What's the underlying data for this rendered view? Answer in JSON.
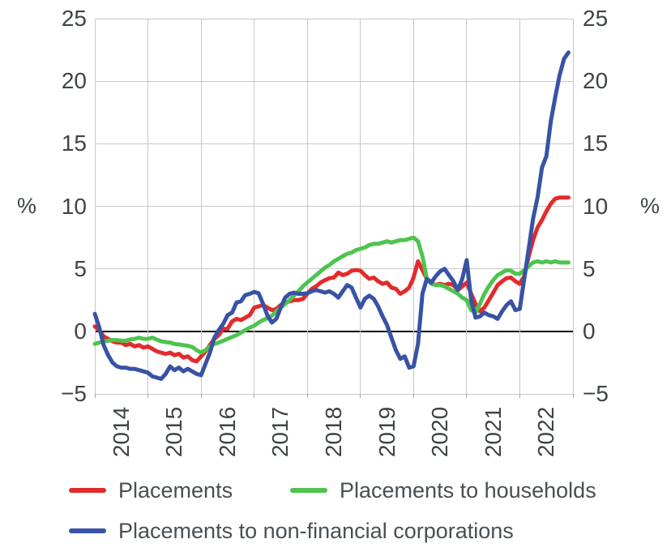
{
  "chart": {
    "title": "",
    "left_unit_label": "%",
    "right_unit_label": "%"
  },
  "chart_data": {
    "type": "line",
    "title": "",
    "xlabel": "",
    "ylabel": "%",
    "ylabel_right": "%",
    "ylim": [
      -5,
      25
    ],
    "y_ticks": [
      25,
      20,
      15,
      10,
      5,
      0,
      -5
    ],
    "grid": true,
    "zero_line": true,
    "legend_position": "bottom",
    "x_unit": "month",
    "x_start": "2014-01",
    "x_end": "2022-12",
    "x_tick_labels": [
      "2014",
      "2015",
      "2016",
      "2017",
      "2018",
      "2019",
      "2020",
      "2021",
      "2022"
    ],
    "series": [
      {
        "name": "Placements",
        "color": "#e22b2b",
        "values": [
          0.4,
          0.1,
          -0.4,
          -0.6,
          -0.8,
          -0.9,
          -0.9,
          -1.1,
          -1.0,
          -1.2,
          -1.1,
          -1.3,
          -1.2,
          -1.4,
          -1.6,
          -1.7,
          -1.8,
          -1.7,
          -1.9,
          -1.8,
          -2.1,
          -2.0,
          -2.3,
          -2.4,
          -2.0,
          -1.6,
          -1.1,
          -0.6,
          -0.3,
          0.2,
          0.2,
          0.8,
          1.0,
          0.9,
          1.1,
          1.3,
          1.9,
          2.0,
          2.1,
          1.9,
          1.7,
          1.8,
          2.1,
          2.3,
          2.4,
          2.5,
          2.5,
          2.6,
          3.0,
          3.4,
          3.6,
          3.9,
          4.1,
          4.25,
          4.3,
          4.7,
          4.5,
          4.6,
          4.85,
          4.9,
          4.85,
          4.5,
          4.2,
          4.3,
          4.0,
          3.8,
          3.9,
          3.5,
          3.4,
          3.0,
          3.2,
          3.5,
          4.3,
          5.6,
          4.9,
          4.2,
          3.9,
          3.7,
          3.8,
          3.7,
          3.8,
          3.7,
          3.3,
          3.6,
          3.9,
          3.0,
          2.2,
          1.6,
          1.9,
          2.5,
          3.1,
          3.7,
          4.0,
          4.25,
          4.3,
          4.0,
          3.8,
          4.4,
          6.0,
          7.3,
          8.3,
          8.9,
          9.6,
          10.2,
          10.6,
          10.7,
          10.7,
          10.7
        ]
      },
      {
        "name": "Placements to households",
        "color": "#4ec44e",
        "values": [
          -1.0,
          -0.9,
          -0.8,
          -0.75,
          -0.7,
          -0.7,
          -0.75,
          -0.75,
          -0.65,
          -0.6,
          -0.5,
          -0.6,
          -0.6,
          -0.5,
          -0.65,
          -0.8,
          -0.85,
          -0.9,
          -1.0,
          -1.05,
          -1.1,
          -1.15,
          -1.25,
          -1.5,
          -1.7,
          -1.5,
          -1.2,
          -1.0,
          -0.9,
          -0.75,
          -0.6,
          -0.45,
          -0.3,
          -0.1,
          0.1,
          0.3,
          0.45,
          0.7,
          0.9,
          1.05,
          1.25,
          1.6,
          1.9,
          2.2,
          2.5,
          2.85,
          3.2,
          3.6,
          3.9,
          4.2,
          4.5,
          4.8,
          5.1,
          5.3,
          5.6,
          5.8,
          6.0,
          6.2,
          6.3,
          6.5,
          6.6,
          6.7,
          6.9,
          7.0,
          7.0,
          7.1,
          7.2,
          7.1,
          7.2,
          7.3,
          7.3,
          7.4,
          7.5,
          7.2,
          6.0,
          4.2,
          3.8,
          3.7,
          3.7,
          3.6,
          3.4,
          3.2,
          3.0,
          2.7,
          2.5,
          1.7,
          1.5,
          2.2,
          3.0,
          3.6,
          4.1,
          4.5,
          4.7,
          4.9,
          4.85,
          4.6,
          4.6,
          4.9,
          5.2,
          5.5,
          5.6,
          5.5,
          5.6,
          5.5,
          5.6,
          5.5,
          5.5,
          5.5
        ]
      },
      {
        "name": "Placements to non-financial corporations",
        "color": "#3853a4",
        "values": [
          1.4,
          0.3,
          -1.1,
          -1.9,
          -2.5,
          -2.8,
          -2.9,
          -2.9,
          -3.0,
          -3.0,
          -3.1,
          -3.2,
          -3.3,
          -3.6,
          -3.7,
          -3.8,
          -3.4,
          -2.8,
          -3.1,
          -2.9,
          -3.2,
          -3.0,
          -3.2,
          -3.4,
          -3.5,
          -2.6,
          -1.7,
          -0.5,
          0.1,
          0.6,
          1.3,
          1.5,
          2.3,
          2.4,
          2.9,
          3.0,
          3.15,
          3.05,
          2.2,
          1.25,
          0.7,
          1.0,
          1.9,
          2.7,
          3.0,
          3.1,
          3.0,
          3.0,
          3.05,
          3.2,
          3.3,
          3.2,
          3.1,
          3.2,
          3.0,
          2.7,
          3.2,
          3.7,
          3.5,
          2.7,
          1.9,
          2.6,
          2.85,
          2.6,
          2.0,
          1.2,
          0.5,
          -0.5,
          -1.5,
          -2.2,
          -2.0,
          -2.9,
          -2.8,
          -1.0,
          3.0,
          4.2,
          3.9,
          4.4,
          4.8,
          5.0,
          4.5,
          4.0,
          3.3,
          4.2,
          5.7,
          2.5,
          1.1,
          1.2,
          1.5,
          1.3,
          1.2,
          1.0,
          1.6,
          2.1,
          2.4,
          1.7,
          1.8,
          4.2,
          6.6,
          9.0,
          10.7,
          13.1,
          14.0,
          16.8,
          18.7,
          20.5,
          21.8,
          22.3
        ]
      }
    ]
  }
}
